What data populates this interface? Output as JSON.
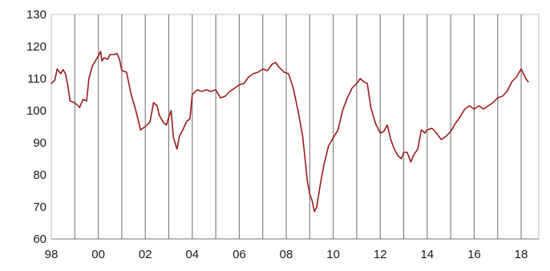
{
  "colors": {
    "series": "#9b1c1c",
    "grid": "#777777",
    "background": "#ffffff"
  },
  "chart_data": {
    "type": "line",
    "title": "",
    "xlabel": "",
    "ylabel": "",
    "xlim": [
      1998.0,
      2018.75
    ],
    "ylim": [
      60,
      130
    ],
    "grid": "vertical year lines",
    "yticks": [
      "60",
      "70",
      "80",
      "90",
      "100",
      "110",
      "120",
      "130"
    ],
    "xtick_values": [
      1998,
      2000,
      2002,
      2004,
      2006,
      2008,
      2010,
      2012,
      2014,
      2016,
      2018
    ],
    "xtick_labels": [
      "98",
      "00",
      "02",
      "04",
      "06",
      "08",
      "10",
      "12",
      "14",
      "16",
      "18"
    ],
    "series": [
      {
        "x": [
          1998.0,
          1998.15,
          1998.25,
          1998.4,
          1998.5,
          1998.6,
          1998.7,
          1998.8,
          1999.0,
          1999.2,
          1999.35,
          1999.5,
          1999.6,
          1999.75,
          2000.0,
          2000.1,
          2000.15,
          2000.25,
          2000.4,
          2000.5,
          2000.65,
          2000.8,
          2000.9,
          2001.0,
          2001.2,
          2001.4,
          2001.6,
          2001.8,
          2002.0,
          2002.2,
          2002.35,
          2002.5,
          2002.6,
          2002.75,
          2002.9,
          2003.0,
          2003.1,
          2003.2,
          2003.35,
          2003.45,
          2003.6,
          2003.75,
          2003.9,
          2004.0,
          2004.2,
          2004.4,
          2004.6,
          2004.8,
          2005.0,
          2005.2,
          2005.4,
          2005.6,
          2005.8,
          2006.0,
          2006.2,
          2006.4,
          2006.6,
          2006.8,
          2007.0,
          2007.2,
          2007.4,
          2007.55,
          2007.7,
          2007.9,
          2008.1,
          2008.3,
          2008.5,
          2008.7,
          2008.9,
          2009.0,
          2009.1,
          2009.2,
          2009.3,
          2009.45,
          2009.6,
          2009.8,
          2010.0,
          2010.2,
          2010.4,
          2010.6,
          2010.8,
          2011.0,
          2011.15,
          2011.3,
          2011.45,
          2011.6,
          2011.8,
          2012.0,
          2012.15,
          2012.3,
          2012.45,
          2012.6,
          2012.75,
          2012.9,
          2013.0,
          2013.15,
          2013.3,
          2013.45,
          2013.6,
          2013.75,
          2013.9,
          2014.0,
          2014.2,
          2014.4,
          2014.6,
          2014.8,
          2015.0,
          2015.2,
          2015.4,
          2015.6,
          2015.8,
          2016.0,
          2016.2,
          2016.4,
          2016.6,
          2016.8,
          2017.0,
          2017.2,
          2017.4,
          2017.6,
          2017.8,
          2018.0,
          2018.1,
          2018.2,
          2018.3
        ],
        "values": [
          108.5,
          109.5,
          113,
          111.5,
          112.8,
          111.5,
          108,
          103,
          102.5,
          101,
          103.5,
          103,
          110,
          114,
          117,
          118.5,
          115.5,
          116.5,
          116,
          117.5,
          117.5,
          117.8,
          116,
          112.5,
          112,
          105,
          100,
          94,
          95,
          96.5,
          102.5,
          101.5,
          98.5,
          96.5,
          95.5,
          98,
          100,
          91.5,
          88,
          92,
          94,
          96.5,
          97.5,
          105,
          106.5,
          106,
          106.5,
          106,
          106.5,
          104,
          104.5,
          106,
          107,
          108,
          108.5,
          110.5,
          111.5,
          112,
          113,
          112.5,
          114.5,
          115,
          113.5,
          112,
          111.5,
          107,
          100,
          92,
          78,
          74,
          72,
          68.5,
          70,
          77,
          83,
          89,
          91.5,
          94,
          100,
          104,
          107,
          108.5,
          110,
          109,
          108.5,
          101,
          96,
          93,
          93.5,
          95.5,
          91,
          88,
          86,
          85,
          87,
          87,
          84,
          86.5,
          88,
          94,
          93,
          94,
          94.5,
          93,
          91,
          92,
          93.5,
          96,
          98,
          100.5,
          101.5,
          100.5,
          101.5,
          100.5,
          101.5,
          102.5,
          104,
          104.5,
          106,
          109,
          110.5,
          113,
          111.5,
          110,
          109
        ]
      }
    ]
  }
}
